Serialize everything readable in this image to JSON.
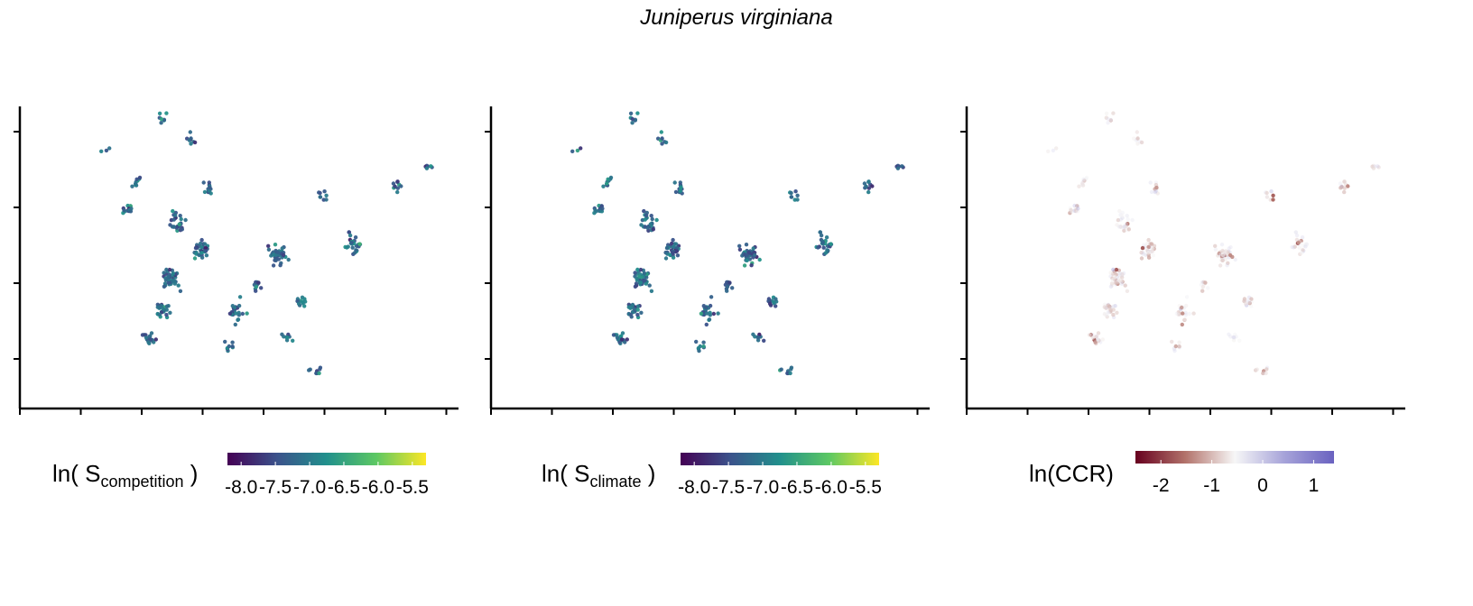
{
  "title": "Juniperus virginiana",
  "panels": [
    {
      "legend": {
        "prefix": "ln( S",
        "subscript": "competition",
        "suffix": " )"
      },
      "colorbar": {
        "palette": "viridis",
        "stops": [
          "#440154",
          "#3b528b",
          "#21908c",
          "#5dc863",
          "#fde725"
        ],
        "range": [
          -8.2,
          -5.3
        ],
        "ticks": [
          "-8.0",
          "-7.5",
          "-7.0",
          "-6.5",
          "-6.0",
          "-5.5"
        ]
      }
    },
    {
      "legend": {
        "prefix": "ln( S",
        "subscript": "climate",
        "suffix": " )"
      },
      "colorbar": {
        "palette": "viridis",
        "stops": [
          "#440154",
          "#3b528b",
          "#21908c",
          "#5dc863",
          "#fde725"
        ],
        "range": [
          -8.2,
          -5.3
        ],
        "ticks": [
          "-8.0",
          "-7.5",
          "-7.0",
          "-6.5",
          "-6.0",
          "-5.5"
        ]
      }
    },
    {
      "legend": {
        "prefix": "ln(CCR)",
        "subscript": "",
        "suffix": ""
      },
      "colorbar": {
        "palette": "diverging",
        "stops": [
          "#67001f",
          "#b2726a",
          "#f7f7f7",
          "#a6a3d9",
          "#6a62c0"
        ],
        "range": [
          -2.5,
          1.4
        ],
        "ticks": [
          "-2",
          "-1",
          "0",
          "1"
        ]
      }
    }
  ],
  "chart_data": [
    {
      "type": "scatter",
      "title": "",
      "xlabel": "",
      "ylabel": "",
      "x_tick_labels": [],
      "y_tick_labels": [],
      "color_variable": "ln( S competition )",
      "color_range": [
        -8.2,
        -5.3
      ],
      "grid": false,
      "clusters": [
        {
          "x": 4.1,
          "y": 8.5,
          "n": 3
        },
        {
          "x": 5.5,
          "y": 7.5,
          "n": 10
        },
        {
          "x": 5.2,
          "y": 6.6,
          "n": 14
        },
        {
          "x": 6.8,
          "y": 9.6,
          "n": 7
        },
        {
          "x": 8.2,
          "y": 8.9,
          "n": 8
        },
        {
          "x": 9.0,
          "y": 7.3,
          "n": 12
        },
        {
          "x": 7.5,
          "y": 6.1,
          "n": 28
        },
        {
          "x": 8.6,
          "y": 5.3,
          "n": 32
        },
        {
          "x": 7.3,
          "y": 4.3,
          "n": 42
        },
        {
          "x": 6.8,
          "y": 3.3,
          "n": 24
        },
        {
          "x": 6.2,
          "y": 2.3,
          "n": 18
        },
        {
          "x": 10.4,
          "y": 3.2,
          "n": 24
        },
        {
          "x": 10.1,
          "y": 2.1,
          "n": 8
        },
        {
          "x": 12.3,
          "y": 5.1,
          "n": 40
        },
        {
          "x": 11.3,
          "y": 4.1,
          "n": 10
        },
        {
          "x": 13.5,
          "y": 3.5,
          "n": 12
        },
        {
          "x": 12.8,
          "y": 2.3,
          "n": 8
        },
        {
          "x": 14.1,
          "y": 1.3,
          "n": 8
        },
        {
          "x": 14.5,
          "y": 7.1,
          "n": 8
        },
        {
          "x": 16.0,
          "y": 5.5,
          "n": 26
        },
        {
          "x": 18.0,
          "y": 7.4,
          "n": 10
        },
        {
          "x": 19.5,
          "y": 8.0,
          "n": 6
        }
      ]
    },
    {
      "type": "scatter",
      "title": "",
      "xlabel": "",
      "ylabel": "",
      "x_tick_labels": [],
      "y_tick_labels": [],
      "color_variable": "ln( S climate )",
      "color_range": [
        -8.2,
        -5.3
      ],
      "grid": false,
      "clusters": [
        {
          "x": 4.1,
          "y": 8.5,
          "n": 3
        },
        {
          "x": 5.5,
          "y": 7.5,
          "n": 10
        },
        {
          "x": 5.2,
          "y": 6.6,
          "n": 14
        },
        {
          "x": 6.8,
          "y": 9.6,
          "n": 7
        },
        {
          "x": 8.2,
          "y": 8.9,
          "n": 8
        },
        {
          "x": 9.0,
          "y": 7.3,
          "n": 12
        },
        {
          "x": 7.5,
          "y": 6.1,
          "n": 28
        },
        {
          "x": 8.6,
          "y": 5.3,
          "n": 32
        },
        {
          "x": 7.3,
          "y": 4.3,
          "n": 42
        },
        {
          "x": 6.8,
          "y": 3.3,
          "n": 24
        },
        {
          "x": 6.2,
          "y": 2.3,
          "n": 18
        },
        {
          "x": 10.4,
          "y": 3.2,
          "n": 24
        },
        {
          "x": 10.1,
          "y": 2.1,
          "n": 8
        },
        {
          "x": 12.3,
          "y": 5.1,
          "n": 40
        },
        {
          "x": 11.3,
          "y": 4.1,
          "n": 10
        },
        {
          "x": 13.5,
          "y": 3.5,
          "n": 12
        },
        {
          "x": 12.8,
          "y": 2.3,
          "n": 8
        },
        {
          "x": 14.1,
          "y": 1.3,
          "n": 8
        },
        {
          "x": 14.5,
          "y": 7.1,
          "n": 8
        },
        {
          "x": 16.0,
          "y": 5.5,
          "n": 26
        },
        {
          "x": 18.0,
          "y": 7.4,
          "n": 10
        },
        {
          "x": 19.5,
          "y": 8.0,
          "n": 6
        }
      ]
    },
    {
      "type": "scatter",
      "title": "",
      "xlabel": "",
      "ylabel": "",
      "x_tick_labels": [],
      "y_tick_labels": [],
      "color_variable": "ln(CCR)",
      "color_range": [
        -2.5,
        1.4
      ],
      "grid": false,
      "clusters": [
        {
          "x": 4.1,
          "y": 8.5,
          "n": 3
        },
        {
          "x": 5.5,
          "y": 7.5,
          "n": 10
        },
        {
          "x": 5.2,
          "y": 6.6,
          "n": 14
        },
        {
          "x": 6.8,
          "y": 9.6,
          "n": 7
        },
        {
          "x": 8.2,
          "y": 8.9,
          "n": 8
        },
        {
          "x": 9.0,
          "y": 7.3,
          "n": 12
        },
        {
          "x": 7.5,
          "y": 6.1,
          "n": 28
        },
        {
          "x": 8.6,
          "y": 5.3,
          "n": 32
        },
        {
          "x": 7.3,
          "y": 4.3,
          "n": 42
        },
        {
          "x": 6.8,
          "y": 3.3,
          "n": 24
        },
        {
          "x": 6.2,
          "y": 2.3,
          "n": 18
        },
        {
          "x": 10.4,
          "y": 3.2,
          "n": 24
        },
        {
          "x": 10.1,
          "y": 2.1,
          "n": 8
        },
        {
          "x": 12.3,
          "y": 5.1,
          "n": 40
        },
        {
          "x": 11.3,
          "y": 4.1,
          "n": 10
        },
        {
          "x": 13.5,
          "y": 3.5,
          "n": 12
        },
        {
          "x": 12.8,
          "y": 2.3,
          "n": 8
        },
        {
          "x": 14.1,
          "y": 1.3,
          "n": 8
        },
        {
          "x": 14.5,
          "y": 7.1,
          "n": 8
        },
        {
          "x": 16.0,
          "y": 5.5,
          "n": 26
        },
        {
          "x": 18.0,
          "y": 7.4,
          "n": 10
        },
        {
          "x": 19.5,
          "y": 8.0,
          "n": 6
        }
      ]
    }
  ]
}
